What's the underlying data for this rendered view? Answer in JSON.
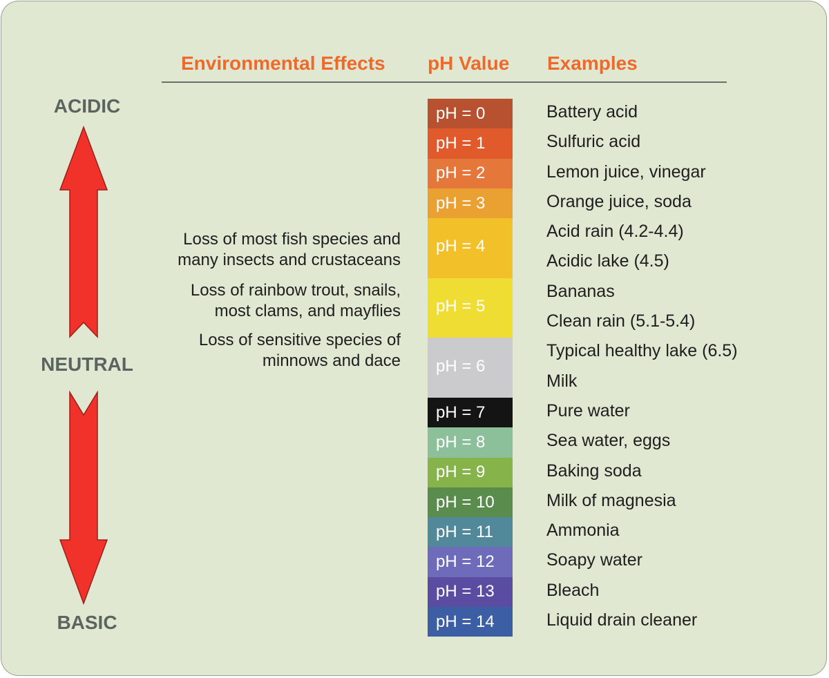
{
  "headers": {
    "effects": "Environmental Effects",
    "ph": "pH Value",
    "examples": "Examples"
  },
  "side_labels": {
    "acidic": "ACIDIC",
    "neutral": "NEUTRAL",
    "basic": "BASIC"
  },
  "effects": [
    {
      "line1": "Loss of most fish species and",
      "line2": "many insects and crustaceans"
    },
    {
      "line1": "Loss of rainbow trout, snails,",
      "line2": "most clams, and mayflies"
    },
    {
      "line1": "Loss of sensitive species of",
      "line2": "minnows and dace"
    }
  ],
  "scale": [
    {
      "label": "pH = 0",
      "color": "#b8512f",
      "rows": 1
    },
    {
      "label": "pH = 1",
      "color": "#e05a2c",
      "rows": 1
    },
    {
      "label": "pH = 2",
      "color": "#e6773a",
      "rows": 1
    },
    {
      "label": "pH = 3",
      "color": "#eba132",
      "rows": 1
    },
    {
      "label": "pH = 4",
      "color": "#f2c12a",
      "rows": 2
    },
    {
      "label": "pH = 5",
      "color": "#f0dd34",
      "rows": 2
    },
    {
      "label": "pH = 6",
      "color": "#cbcbcd",
      "rows": 2
    },
    {
      "label": "pH = 7",
      "color": "#141414",
      "rows": 1
    },
    {
      "label": "pH = 8",
      "color": "#8cc09a",
      "rows": 1
    },
    {
      "label": "pH = 9",
      "color": "#86b44a",
      "rows": 1
    },
    {
      "label": "pH = 10",
      "color": "#5a8c4e",
      "rows": 1
    },
    {
      "label": "pH = 11",
      "color": "#52899a",
      "rows": 1
    },
    {
      "label": "pH = 12",
      "color": "#6e6cba",
      "rows": 1
    },
    {
      "label": "pH = 13",
      "color": "#5a4ca0",
      "rows": 1
    },
    {
      "label": "pH = 14",
      "color": "#3c5ea4",
      "rows": 1
    }
  ],
  "examples": [
    "Battery acid",
    "Sulfuric acid",
    "Lemon juice, vinegar",
    "Orange juice, soda",
    "Acid rain (4.2-4.4)",
    "Acidic lake (4.5)",
    "Bananas",
    "Clean rain (5.1-5.4)",
    "Typical healthy lake (6.5)",
    "Milk",
    "Pure water",
    "Sea water, eggs",
    "Baking soda",
    "Milk of magnesia",
    "Ammonia",
    "Soapy water",
    "Bleach",
    "Liquid drain cleaner"
  ],
  "colors": {
    "background": "#e0e8d2",
    "header": "#ef6a2a",
    "arrow": "#f1322a",
    "side_label": "#5c6460"
  },
  "icons": {
    "acidic_arrow": "up-arrow-icon",
    "basic_arrow": "down-arrow-icon"
  }
}
